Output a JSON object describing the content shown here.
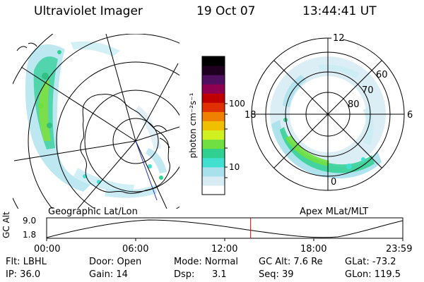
{
  "header": {
    "title": "Ultraviolet Imager",
    "date": "19 Oct 07",
    "time": "13:44:41 UT"
  },
  "left_panel": {
    "caption": "Geographic Lat/Lon"
  },
  "right_panel": {
    "caption": "Apex MLat/MLT",
    "mlt_labels": {
      "top": "12",
      "left": "18",
      "right": "6",
      "bottom": "0"
    },
    "lat_labels": [
      "60",
      "70",
      "80"
    ]
  },
  "colorbar": {
    "unit_label": "photon cm⁻²s⁻¹",
    "scale": "log",
    "tick_labels": [
      "100",
      "10"
    ],
    "colors": [
      "#ffffff",
      "#d8ecf4",
      "#a8e0ec",
      "#40e0d0",
      "#30d090",
      "#70e040",
      "#d0f020",
      "#f0c000",
      "#f08000",
      "#e03000",
      "#c00000",
      "#900050",
      "#501060",
      "#200020",
      "#000000"
    ]
  },
  "timeline": {
    "axis_label": "GC Alt",
    "y_ticks": [
      "9.0",
      "1.8"
    ],
    "x_ticks": [
      "00:00",
      "06:00",
      "12:00",
      "18:00",
      "23:59"
    ],
    "current_time_hours": 13.745,
    "marker_color": "#e00000"
  },
  "status": {
    "flt": "Flt: LBHL",
    "door": "Door: Open",
    "mode": "Mode: Normal",
    "gc_alt": "GC Alt: 7.6 Re",
    "glat": "GLat: -73.2",
    "ip": "IP: 36.0",
    "gain": "Gain: 14",
    "dsp_label": "Dsp:",
    "dsp_value": "3.1",
    "seq": "Seq: 39",
    "glon": "GLon: 119.5"
  }
}
